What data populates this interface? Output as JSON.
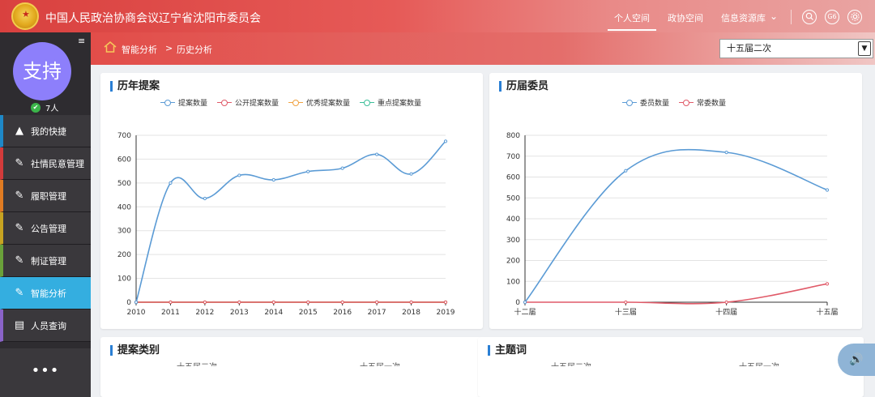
{
  "header": {
    "org_title": "中国人民政治协商会议辽宁省沈阳市委员会",
    "nav": [
      {
        "label": "个人空间",
        "active": true
      },
      {
        "label": "政协空间",
        "active": false
      },
      {
        "label": "信息资源库",
        "active": false
      }
    ],
    "icons": [
      "search-icon",
      "g6-icon",
      "settings-icon"
    ],
    "g6_label": "G6"
  },
  "sidebar": {
    "avatar_text": "支持",
    "online_count": "7人",
    "items": [
      {
        "label": "我的快捷",
        "icon": "triangle-icon",
        "accent": "#1e88c7",
        "active": false
      },
      {
        "label": "社情民意管理",
        "icon": "edit-icon",
        "accent": "#d33b3b",
        "active": false
      },
      {
        "label": "履职管理",
        "icon": "edit-icon",
        "accent": "#e07b22",
        "active": false
      },
      {
        "label": "公告管理",
        "icon": "edit-icon",
        "accent": "#c7a321",
        "active": false
      },
      {
        "label": "制证管理",
        "icon": "edit-icon",
        "accent": "#6aa13a",
        "active": false
      },
      {
        "label": "智能分析",
        "icon": "edit-icon",
        "accent": "#34aee0",
        "active": true
      },
      {
        "label": "人员查询",
        "icon": "document-icon",
        "accent": "#8a63c8",
        "active": false
      }
    ],
    "more": "•••"
  },
  "breadcrumb": {
    "items": [
      "智能分析",
      "历史分析"
    ],
    "separator": ">"
  },
  "session_select": {
    "value": "十五届二次"
  },
  "panels": {
    "proposals_title": "历年提案",
    "members_title": "历届委员",
    "category_title": "提案类别",
    "topic_title": "主题词",
    "category_sub": [
      "十五届二次",
      "十五届一次"
    ],
    "topic_sub": [
      "十五届二次",
      "十五届一次"
    ]
  },
  "chart_data": [
    {
      "type": "line",
      "title": "历年提案",
      "categories": [
        "2010",
        "2011",
        "2012",
        "2013",
        "2014",
        "2015",
        "2016",
        "2017",
        "2018",
        "2019"
      ],
      "ylim": [
        0,
        700
      ],
      "yticks": [
        0,
        100,
        200,
        300,
        400,
        500,
        600,
        700
      ],
      "grid": true,
      "legend_position": "top",
      "series": [
        {
          "name": "提案数量",
          "color": "#5b9bd5",
          "values": [
            0,
            500,
            435,
            532,
            513,
            548,
            562,
            620,
            538,
            675
          ]
        },
        {
          "name": "公开提案数量",
          "color": "#e05a68",
          "values": [
            0,
            0,
            0,
            0,
            0,
            0,
            0,
            0,
            0,
            0
          ]
        },
        {
          "name": "优秀提案数量",
          "color": "#f0a240",
          "values": [
            0,
            0,
            0,
            0,
            0,
            0,
            0,
            0,
            0,
            0
          ]
        },
        {
          "name": "重点提案数量",
          "color": "#3cbf9a",
          "values": [
            0,
            0,
            0,
            0,
            0,
            0,
            0,
            0,
            0,
            0
          ]
        }
      ]
    },
    {
      "type": "line",
      "title": "历届委员",
      "categories": [
        "十二届",
        "十三届",
        "十四届",
        "十五届"
      ],
      "ylim": [
        0,
        800
      ],
      "yticks": [
        0,
        100,
        200,
        300,
        400,
        500,
        600,
        700,
        800
      ],
      "grid": true,
      "legend_position": "top",
      "series": [
        {
          "name": "委员数量",
          "color": "#5b9bd5",
          "values": [
            0,
            630,
            718,
            538
          ]
        },
        {
          "name": "常委数量",
          "color": "#e05a68",
          "values": [
            0,
            0,
            0,
            88
          ]
        }
      ]
    }
  ]
}
